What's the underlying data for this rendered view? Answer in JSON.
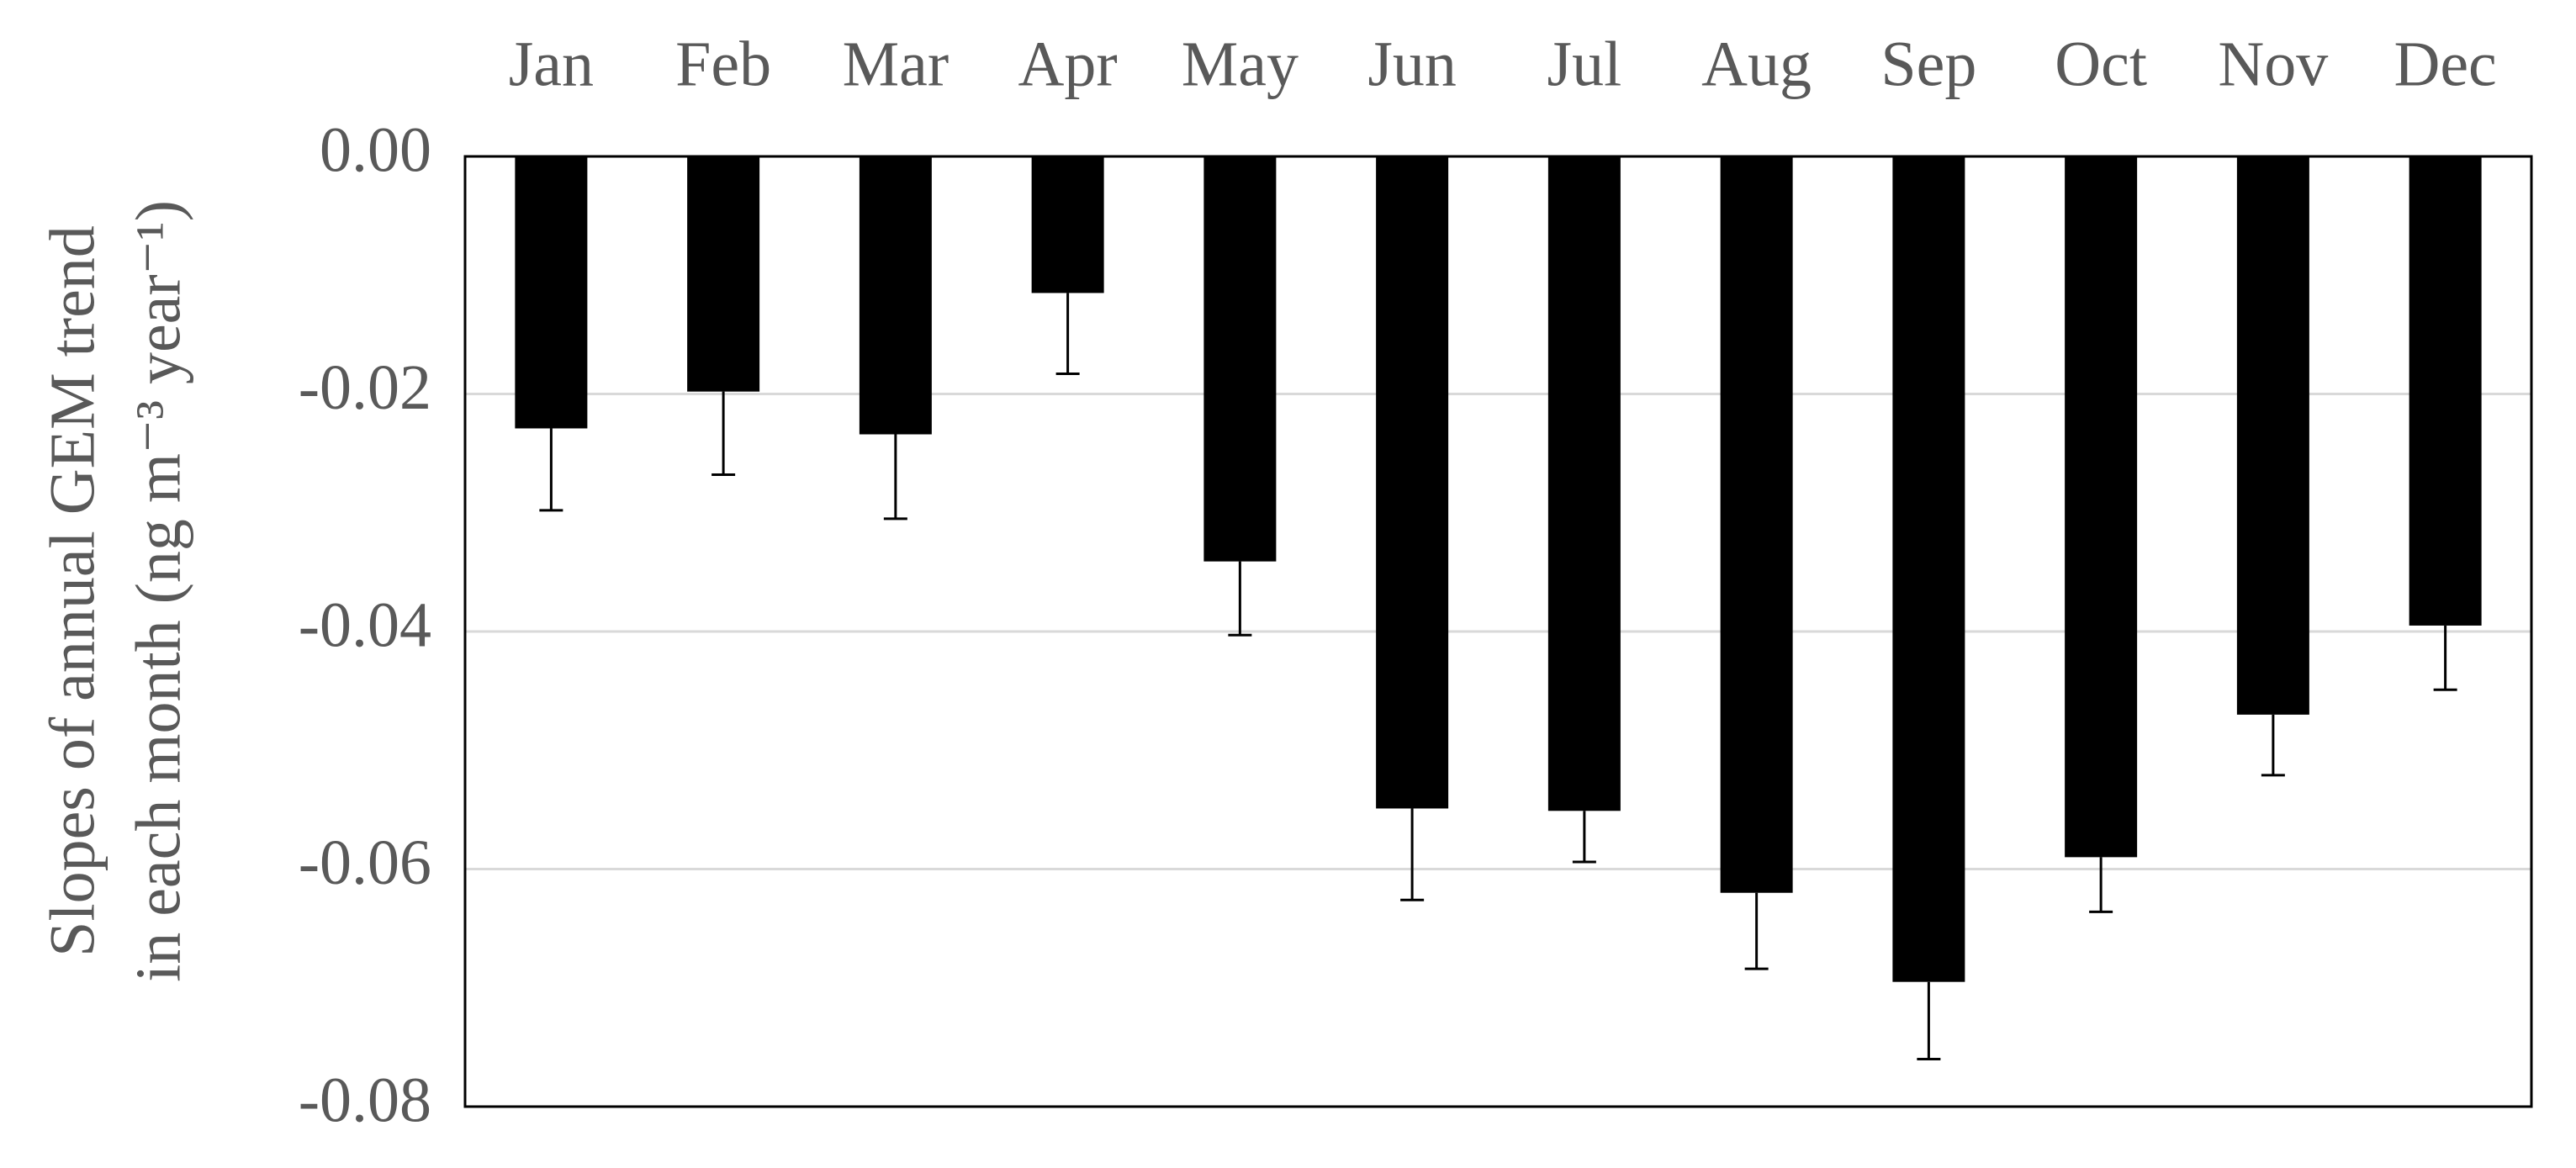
{
  "chart_data": {
    "type": "bar",
    "ylabel": [
      "Slopes of annual GEM trend",
      "in each month (ng m⁻³ year⁻¹)"
    ],
    "categories": [
      "Jan",
      "Feb",
      "Mar",
      "Apr",
      "May",
      "Jun",
      "Jul",
      "Aug",
      "Sep",
      "Oct",
      "Nov",
      "Dec"
    ],
    "values": [
      -0.0229,
      -0.0198,
      -0.0234,
      -0.0115,
      -0.0341,
      -0.0549,
      -0.0551,
      -0.062,
      -0.0695,
      -0.059,
      -0.047,
      -0.0395
    ],
    "errors": [
      0.0069,
      0.007,
      0.0071,
      0.0068,
      0.0062,
      0.0077,
      0.0043,
      0.0064,
      0.0065,
      0.0046,
      0.0051,
      0.0054
    ],
    "color": "#000000",
    "ylim": [
      -0.08,
      0
    ],
    "yticks": [
      {
        "value": 0,
        "label": "0.00"
      },
      -0.02,
      -0.04,
      -0.06,
      -0.08
    ],
    "grid": true
  }
}
